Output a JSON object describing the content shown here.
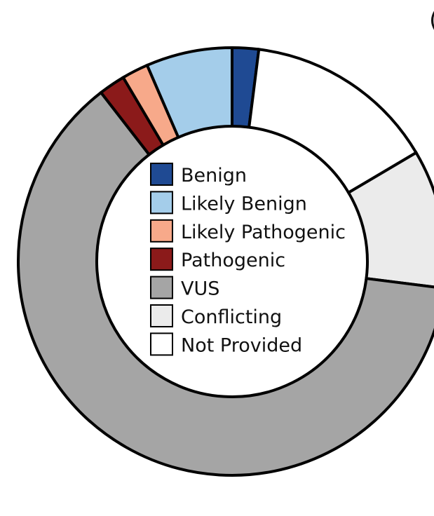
{
  "corner_label": "(",
  "chart_data": {
    "type": "pie",
    "donut": true,
    "title": "",
    "legend_position": "center",
    "slices": [
      {
        "label": "Benign",
        "value": 2.0,
        "color": "#1f4a93"
      },
      {
        "label": "Not Provided",
        "value": 14.5,
        "color": "#ffffff"
      },
      {
        "label": "Conflicting",
        "value": 10.5,
        "color": "#ebebeb"
      },
      {
        "label": "VUS",
        "value": 62.5,
        "color": "#a5a5a5"
      },
      {
        "label": "Pathogenic",
        "value": 2.0,
        "color": "#8b1a1a"
      },
      {
        "label": "Likely Pathogenic",
        "value": 2.0,
        "color": "#f7a98a"
      },
      {
        "label": "Likely Benign",
        "value": 6.5,
        "color": "#a4cdea"
      }
    ],
    "legend": [
      {
        "label": "Benign",
        "color": "#1f4a93"
      },
      {
        "label": "Likely Benign",
        "color": "#a4cdea"
      },
      {
        "label": "Likely Pathogenic",
        "color": "#f7a98a"
      },
      {
        "label": "Pathogenic",
        "color": "#8b1a1a"
      },
      {
        "label": "VUS",
        "color": "#a5a5a5"
      },
      {
        "label": "Conflicting",
        "color": "#ebebeb"
      },
      {
        "label": "Not Provided",
        "color": "#ffffff"
      }
    ]
  }
}
